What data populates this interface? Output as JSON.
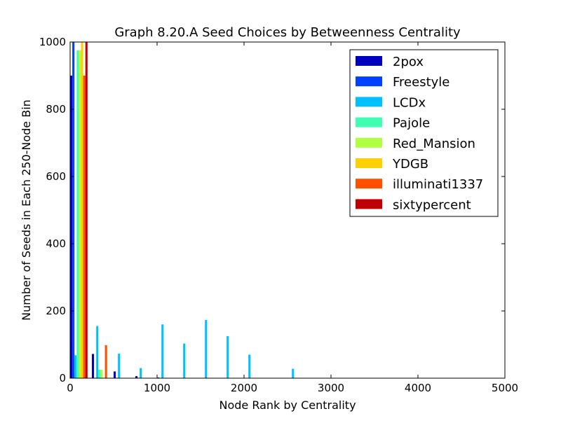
{
  "chart_data": {
    "type": "bar",
    "title": "Graph 8.20.A Seed Choices by Betweenness Centrality",
    "xlabel": "Node Rank by Centrality",
    "ylabel": "Number of Seeds in Each 250-Node Bin",
    "xlim": [
      0,
      5000
    ],
    "ylim": [
      0,
      1000
    ],
    "xticks": [
      0,
      1000,
      2000,
      3000,
      4000,
      5000
    ],
    "yticks": [
      0,
      200,
      400,
      600,
      800,
      1000
    ],
    "bin_width": 250,
    "bins": [
      0,
      250,
      500,
      750,
      1000,
      1250,
      1500,
      1750,
      2000,
      2250,
      2500,
      2750,
      3000
    ],
    "legend_position": "top-right",
    "grid": false,
    "series": [
      {
        "name": "2pox",
        "color": "#0000c0",
        "values": [
          900,
          72,
          20,
          6,
          2,
          0,
          0,
          0,
          0,
          0,
          0,
          0,
          0
        ]
      },
      {
        "name": "Freestyle",
        "color": "#0040ff",
        "values": [
          1000,
          0,
          0,
          0,
          0,
          0,
          0,
          0,
          0,
          0,
          0,
          0,
          0
        ]
      },
      {
        "name": "LCDx",
        "color": "#00c0ff",
        "values": [
          68,
          155,
          73,
          30,
          160,
          103,
          173,
          125,
          70,
          0,
          28,
          0,
          0
        ]
      },
      {
        "name": "Pajole",
        "color": "#40ffb0",
        "values": [
          975,
          25,
          0,
          0,
          0,
          0,
          0,
          0,
          0,
          0,
          0,
          0,
          0
        ]
      },
      {
        "name": "Red_Mansion",
        "color": "#b0ff40",
        "values": [
          975,
          25,
          0,
          0,
          0,
          0,
          0,
          0,
          0,
          0,
          0,
          0,
          0
        ]
      },
      {
        "name": "YDGB",
        "color": "#ffd000",
        "values": [
          1000,
          0,
          0,
          0,
          0,
          0,
          0,
          0,
          0,
          0,
          0,
          0,
          0
        ]
      },
      {
        "name": "illuminati1337",
        "color": "#ff5000",
        "values": [
          900,
          98,
          0,
          0,
          0,
          0,
          0,
          0,
          0,
          0,
          0,
          0,
          0
        ]
      },
      {
        "name": "sixtypercent",
        "color": "#c00000",
        "values": [
          1000,
          0,
          0,
          0,
          0,
          0,
          0,
          0,
          0,
          0,
          0,
          0,
          0
        ]
      }
    ]
  }
}
